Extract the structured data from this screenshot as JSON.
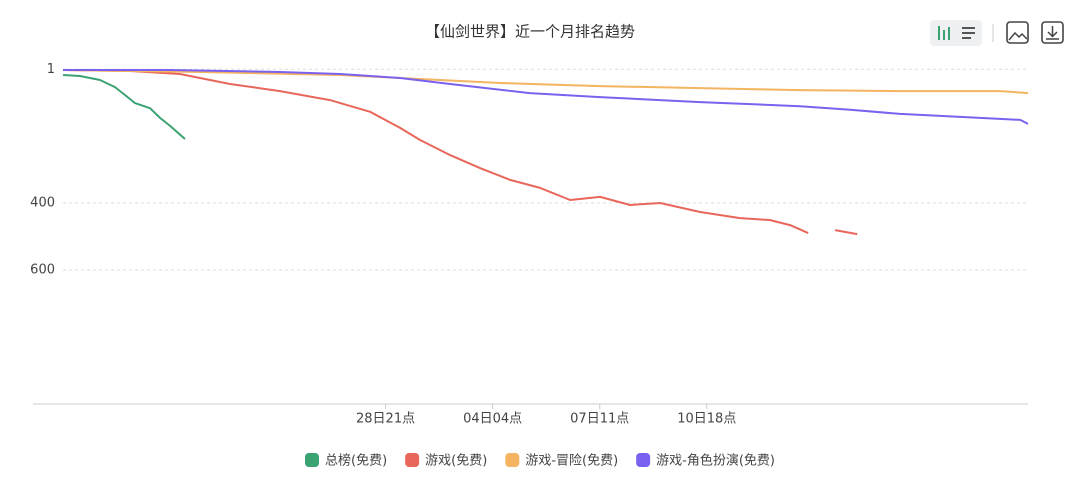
{
  "chart_data": {
    "type": "line",
    "title": "【仙剑世界】近一个月排名趋势",
    "xlim": [
      0,
      712
    ],
    "xticks": [
      {
        "value": 238,
        "label": "28日21点"
      },
      {
        "value": 317,
        "label": "04日04点"
      },
      {
        "value": 396,
        "label": "07日11点"
      },
      {
        "value": 475,
        "label": "10日18点"
      }
    ],
    "ylim": [
      1,
      1000
    ],
    "inverse": true,
    "yticks": [
      1,
      400,
      600
    ],
    "grid": true,
    "legend": "bottom",
    "series": [
      {
        "name": "总榜(免费)",
        "color": "#3ba272",
        "x": [
          0,
          12.5,
          27.3,
          38.4,
          45.8,
          53.1,
          64.2,
          71.6,
          79.0,
          90.0
        ],
        "values": [
          18,
          21,
          33,
          54,
          78,
          102,
          117,
          146,
          170,
          209
        ]
      },
      {
        "name": "游戏(免费)",
        "color": "#e8675a",
        "x": [
          0,
          49.4,
          86.3,
          123.2,
          160.1,
          197.0,
          226.6,
          248.7,
          263.5,
          285.6,
          307.7,
          329.9,
          352.0,
          374.2,
          396.3,
          418.4,
          440.6,
          470.1,
          499.6,
          521.8,
          536.5,
          549.8,
          560,
          569.7,
          586.0
        ],
        "values": [
          3,
          6,
          15,
          45,
          66,
          93,
          128,
          176,
          212,
          257,
          296,
          331,
          355,
          391,
          382,
          406,
          400,
          427,
          445,
          451,
          466,
          490,
          null,
          481,
          493
        ]
      },
      {
        "name": "游戏-冒险(免费)",
        "color": "#f5b461",
        "x": [
          0,
          101.1,
          204.4,
          248.7,
          322.5,
          396.3,
          470.1,
          543.9,
          617.7,
          691.5,
          712
        ],
        "values": [
          3,
          9,
          18,
          27,
          42,
          51,
          57,
          63,
          66,
          66,
          72
        ]
      },
      {
        "name": "游戏-角色扮演(免费)",
        "color": "#7b61ef",
        "x": [
          0,
          79.0,
          160.1,
          204.4,
          248.7,
          285.6,
          344.4,
          396.3,
          470.1,
          543.9,
          580.8,
          617.7,
          662.0,
          706.3,
          712
        ],
        "values": [
          3,
          3,
          9,
          15,
          27,
          45,
          72,
          84,
          99,
          111,
          122,
          134,
          143,
          152,
          164
        ]
      }
    ]
  }
}
